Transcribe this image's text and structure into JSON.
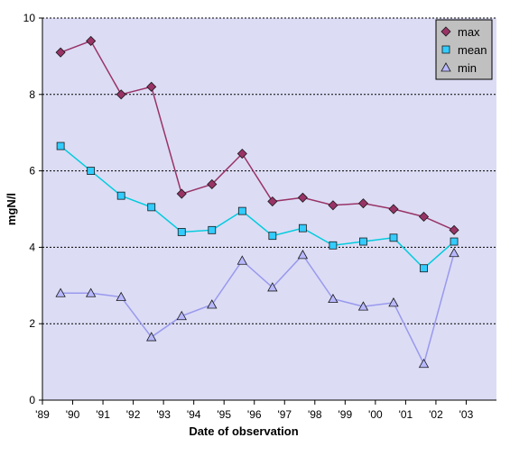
{
  "chart_data": {
    "type": "line",
    "title": "",
    "xlabel": "Date of observation",
    "ylabel": "mgN/l",
    "ylim": [
      0,
      10
    ],
    "yticks": [
      "0",
      "2",
      "4",
      "6",
      "8",
      "10"
    ],
    "xlim": [
      1989,
      2004
    ],
    "xtick_labels": [
      "'89",
      "'90",
      "'91",
      "'92",
      "'93",
      "'94",
      "'95",
      "'96",
      "'97",
      "'98",
      "'99",
      "'00",
      "'01",
      "'02",
      "'03"
    ],
    "grid": "horizontal dashed",
    "legend_position": "top-right",
    "x": [
      1989.6,
      1990.6,
      1991.6,
      1992.6,
      1993.6,
      1994.6,
      1995.6,
      1996.6,
      1997.6,
      1998.6,
      1999.6,
      2000.6,
      2001.6,
      2002.6
    ],
    "series": [
      {
        "name": "max",
        "marker": "diamond",
        "color": "#993366",
        "fill": "#993366",
        "values": [
          9.1,
          9.4,
          8.0,
          8.2,
          5.4,
          5.65,
          6.45,
          5.2,
          5.3,
          5.1,
          5.15,
          5.0,
          4.8,
          4.45
        ]
      },
      {
        "name": "mean",
        "marker": "square",
        "color": "#00ccdd",
        "fill": "#33ccff",
        "values": [
          6.65,
          6.0,
          5.35,
          5.05,
          4.4,
          4.45,
          4.95,
          4.3,
          4.5,
          4.05,
          4.15,
          4.25,
          3.45,
          4.15
        ]
      },
      {
        "name": "min",
        "marker": "triangle",
        "color": "#9999ee",
        "fill": "#b8b8ff",
        "values": [
          2.8,
          2.8,
          2.7,
          1.65,
          2.2,
          2.5,
          3.65,
          2.95,
          3.8,
          2.65,
          2.45,
          2.55,
          0.95,
          3.85
        ]
      }
    ]
  },
  "colors": {
    "plot_background": "#dcdcf5",
    "axis": "#000000",
    "grid": "#000000"
  }
}
